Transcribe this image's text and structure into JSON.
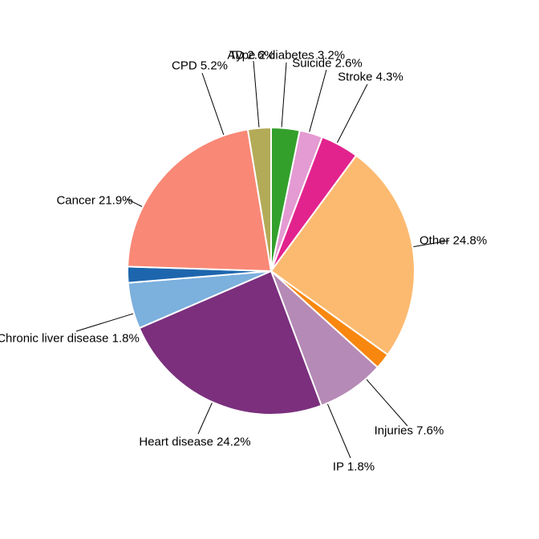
{
  "chart_data": {
    "type": "pie",
    "title": "",
    "legend": "none",
    "direction": "clockwise",
    "start_angle": "12-oclock",
    "background": "#ffffff",
    "slice_border_color": "#ffffff",
    "leader_line_color": "#000000",
    "label_text_color": "#000000",
    "slices": [
      {
        "id": "type-2-diabetes",
        "label": "Type 2 diabetes",
        "value": 3.2,
        "display": "Type 2 diabetes 3.2%",
        "color": "#33a02c"
      },
      {
        "id": "suicide",
        "label": "Suicide",
        "value": 2.6,
        "display": "Suicide 2.6%",
        "color": "#e49ad2"
      },
      {
        "id": "stroke",
        "label": "Stroke",
        "value": 4.3,
        "display": "Stroke 4.3%",
        "color": "#e2238d"
      },
      {
        "id": "other",
        "label": "Other",
        "value": 24.8,
        "display": "Other 24.8%",
        "color": "#fcba70"
      },
      {
        "id": "ip",
        "label": "IP",
        "value": 1.8,
        "display": "IP 1.8%",
        "color": "#f8870f"
      },
      {
        "id": "injuries",
        "label": "Injuries",
        "value": 7.6,
        "display": "Injuries 7.6%",
        "color": "#b58ab6"
      },
      {
        "id": "heart-disease",
        "label": "Heart disease",
        "value": 24.2,
        "display": "Heart disease 24.2%",
        "color": "#7b2f7d"
      },
      {
        "id": "cpd",
        "label": "CPD",
        "value": 5.2,
        "display": "CPD 5.2%",
        "color": "#7cb0dd"
      },
      {
        "id": "chronic-liver-disease",
        "label": "Chronic liver disease",
        "value": 1.8,
        "display": "Chronic liver disease 1.8%",
        "color": "#1d66ae"
      },
      {
        "id": "cancer",
        "label": "Cancer",
        "value": 21.9,
        "display": "Cancer 21.9%",
        "color": "#f98876"
      },
      {
        "id": "ad",
        "label": "AD",
        "value": 2.6,
        "display": "AD 2.6%",
        "color": "#b3ab58"
      }
    ]
  }
}
